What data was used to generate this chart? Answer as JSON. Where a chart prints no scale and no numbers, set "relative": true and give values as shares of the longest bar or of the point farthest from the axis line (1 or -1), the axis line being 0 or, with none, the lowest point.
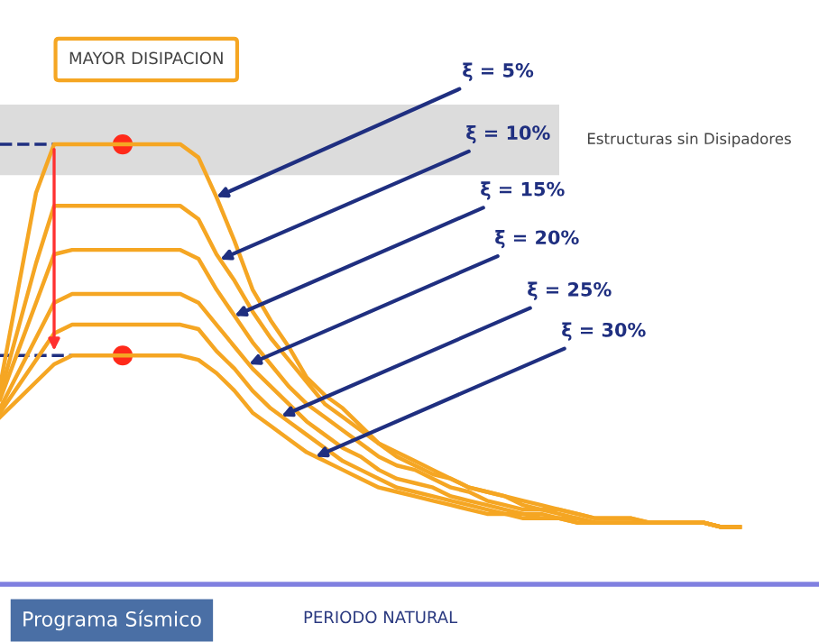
{
  "chart_data": {
    "type": "line",
    "relative": true,
    "title": "MAYOR DISIPACION",
    "xlabel": "PERIODO NATURAL",
    "line_style": "solid",
    "categories": [
      null,
      null,
      null,
      null,
      null,
      null,
      null,
      null,
      null,
      null,
      null,
      null,
      null,
      null,
      null,
      null,
      null,
      null,
      null,
      null,
      null,
      null,
      null,
      null,
      null,
      null,
      null,
      null,
      null,
      null,
      null,
      null,
      null,
      null,
      null,
      null,
      null,
      null,
      null,
      null,
      null,
      null
    ],
    "series": [
      {
        "name": "ξ = 5%",
        "color": "#f5a623",
        "values": [
          0.45,
          0.67,
          0.89,
          1,
          1,
          1,
          1,
          1,
          1,
          1,
          1,
          0.97,
          0.88,
          0.78,
          0.67,
          0.6,
          0.54,
          0.47,
          0.43,
          0.4,
          0.36,
          0.32,
          0.3,
          0.28,
          0.26,
          0.24,
          0.22,
          0.21,
          0.2,
          0.19,
          0.18,
          0.17,
          0.16,
          0.15,
          0.15,
          0.15,
          0.14,
          0.14,
          0.14,
          0.14,
          0.13,
          0.13
        ]
      },
      {
        "name": "ξ = 10%",
        "color": "#f5a623",
        "values": [
          0.43,
          0.58,
          0.73,
          0.86,
          0.86,
          0.86,
          0.86,
          0.86,
          0.86,
          0.86,
          0.86,
          0.83,
          0.75,
          0.69,
          0.62,
          0.56,
          0.51,
          0.46,
          0.41,
          0.38,
          0.35,
          0.32,
          0.29,
          0.27,
          0.25,
          0.24,
          0.22,
          0.21,
          0.2,
          0.18,
          0.17,
          0.17,
          0.16,
          0.15,
          0.15,
          0.15,
          0.14,
          0.14,
          0.14,
          0.14,
          0.13,
          0.13
        ]
      },
      {
        "name": "ξ = 15%",
        "color": "#f5a623",
        "values": [
          0.42,
          0.53,
          0.64,
          0.75,
          0.76,
          0.76,
          0.76,
          0.76,
          0.76,
          0.76,
          0.76,
          0.74,
          0.67,
          0.61,
          0.55,
          0.5,
          0.45,
          0.41,
          0.38,
          0.35,
          0.32,
          0.29,
          0.27,
          0.26,
          0.24,
          0.22,
          0.21,
          0.19,
          0.18,
          0.17,
          0.17,
          0.16,
          0.15,
          0.14,
          0.14,
          0.14,
          0.14,
          0.14,
          0.14,
          0.14,
          0.13,
          0.13
        ]
      },
      {
        "name": "ξ = 20%",
        "color": "#f5a623",
        "values": [
          0.4,
          0.48,
          0.56,
          0.64,
          0.66,
          0.66,
          0.66,
          0.66,
          0.66,
          0.66,
          0.66,
          0.64,
          0.59,
          0.54,
          0.49,
          0.45,
          0.41,
          0.37,
          0.34,
          0.31,
          0.29,
          0.26,
          0.24,
          0.23,
          0.22,
          0.2,
          0.19,
          0.18,
          0.17,
          0.16,
          0.16,
          0.15,
          0.15,
          0.14,
          0.14,
          0.14,
          0.14,
          0.14,
          0.14,
          0.14,
          0.13,
          0.13
        ]
      },
      {
        "name": "ξ = 25%",
        "color": "#f5a623",
        "values": [
          0.39,
          0.45,
          0.51,
          0.57,
          0.59,
          0.59,
          0.59,
          0.59,
          0.59,
          0.59,
          0.59,
          0.58,
          0.53,
          0.49,
          0.44,
          0.4,
          0.37,
          0.34,
          0.31,
          0.28,
          0.26,
          0.24,
          0.22,
          0.21,
          0.2,
          0.19,
          0.18,
          0.17,
          0.16,
          0.16,
          0.15,
          0.15,
          0.14,
          0.14,
          0.14,
          0.14,
          0.14,
          0.14,
          0.14,
          0.14,
          0.13,
          0.13
        ]
      },
      {
        "name": "ξ = 30%",
        "color": "#f5a623",
        "values": [
          0.38,
          0.42,
          0.46,
          0.5,
          0.52,
          0.52,
          0.52,
          0.52,
          0.52,
          0.52,
          0.52,
          0.51,
          0.48,
          0.44,
          0.39,
          0.36,
          0.33,
          0.3,
          0.28,
          0.26,
          0.24,
          0.22,
          0.21,
          0.2,
          0.19,
          0.18,
          0.17,
          0.16,
          0.16,
          0.15,
          0.15,
          0.15,
          0.14,
          0.14,
          0.14,
          0.14,
          0.14,
          0.14,
          0.14,
          0.14,
          0.13,
          0.13
        ]
      }
    ],
    "bands": [
      {
        "axis": "y",
        "from": 0.93,
        "to": 1.09,
        "color": "#dcdcdc",
        "label": "Estructuras sin Disipadores"
      }
    ],
    "annotations": [
      "Programa Sísmico"
    ]
  }
}
